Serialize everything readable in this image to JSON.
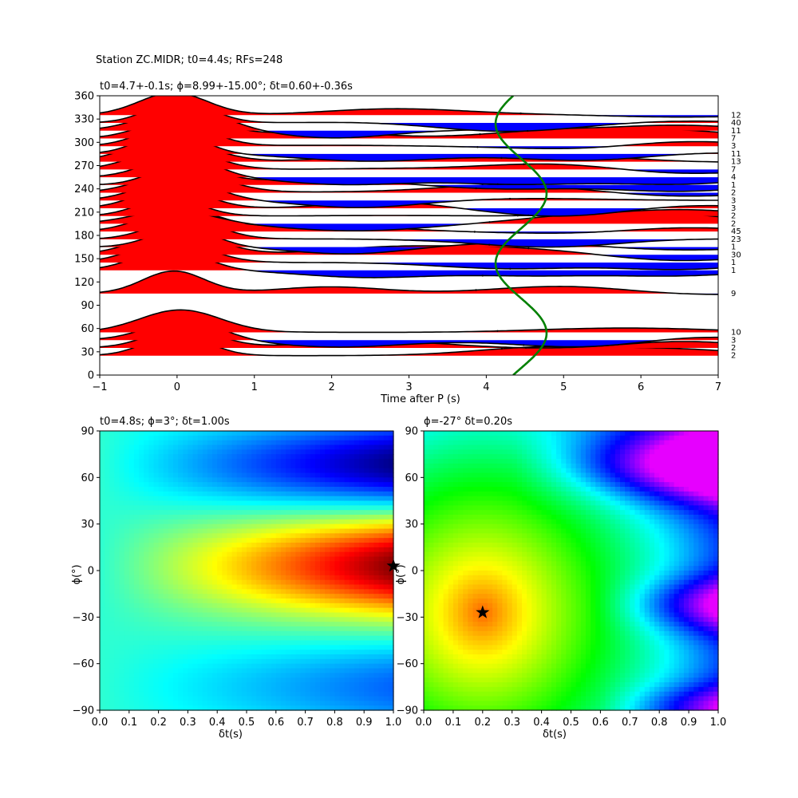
{
  "figure": {
    "suptitle": "Station ZC.MIDR; t0=4.4s; RFs=248"
  },
  "chart_data": [
    {
      "type": "line",
      "subtitle": "t0=4.7+-0.1s; ϕ=8.99+-15.00°; δt=0.60+-0.36s",
      "xlabel": "Time after P (s)",
      "ylabel": "",
      "xlim": [
        -1,
        7
      ],
      "ylim": [
        0,
        360
      ],
      "xticks": [
        "−1",
        "0",
        "1",
        "2",
        "3",
        "4",
        "5",
        "6",
        "7"
      ],
      "yticks": [
        "0",
        "30",
        "60",
        "90",
        "120",
        "150",
        "180",
        "210",
        "240",
        "270",
        "300",
        "330",
        "360"
      ],
      "fill_colors": {
        "positive": "#ff0000",
        "negative": "#0000ff",
        "trace": "#000000"
      },
      "model_curve": {
        "color": "#008000",
        "center_time": 4.45,
        "amplitude": 0.33,
        "period_deg": 180,
        "phase_deg": 9
      },
      "traces": [
        {
          "baz": 25,
          "count": "2",
          "peak": 0.95
        },
        {
          "baz": 35,
          "count": "2",
          "peak": 0.9
        },
        {
          "baz": 45,
          "count": "3",
          "peak": 0.9
        },
        {
          "baz": 55,
          "count": "10",
          "peak": 1.0
        },
        {
          "baz": 105,
          "count": "9",
          "peak": 1.0
        },
        {
          "baz": 135,
          "count": "1",
          "peak": 0.95
        },
        {
          "baz": 145,
          "count": "1",
          "peak": 0.95
        },
        {
          "baz": 155,
          "count": "30",
          "peak": 1.0
        },
        {
          "baz": 165,
          "count": "1",
          "peak": 0.85
        },
        {
          "baz": 175,
          "count": "23",
          "peak": 0.9
        },
        {
          "baz": 185,
          "count": "45",
          "peak": 1.0
        },
        {
          "baz": 195,
          "count": "2",
          "peak": 0.6
        },
        {
          "baz": 205,
          "count": "2",
          "peak": 0.8
        },
        {
          "baz": 215,
          "count": "3",
          "peak": 0.95
        },
        {
          "baz": 225,
          "count": "3",
          "peak": 0.95
        },
        {
          "baz": 235,
          "count": "2",
          "peak": 0.95
        },
        {
          "baz": 245,
          "count": "1",
          "peak": 0.95
        },
        {
          "baz": 255,
          "count": "4",
          "peak": 0.95
        },
        {
          "baz": 265,
          "count": "7",
          "peak": 1.0
        },
        {
          "baz": 275,
          "count": "13",
          "peak": 1.0
        },
        {
          "baz": 285,
          "count": "11",
          "peak": 1.0
        },
        {
          "baz": 295,
          "count": "3",
          "peak": 1.0
        },
        {
          "baz": 305,
          "count": "7",
          "peak": 1.0
        },
        {
          "baz": 315,
          "count": "11",
          "peak": 1.0
        },
        {
          "baz": 325,
          "count": "40",
          "peak": 1.0
        },
        {
          "baz": 335,
          "count": "12",
          "peak": 1.0
        }
      ]
    },
    {
      "type": "heatmap",
      "subtitle": "t0=4.8s; ϕ=3°; δt=1.00s",
      "xlabel": "δt(s)",
      "ylabel": "ϕ(°)",
      "xlim": [
        0,
        1
      ],
      "ylim": [
        -90,
        90
      ],
      "xticks": [
        "0.0",
        "0.1",
        "0.2",
        "0.3",
        "0.4",
        "0.5",
        "0.6",
        "0.7",
        "0.8",
        "0.9",
        "1.0"
      ],
      "yticks": [
        "−90",
        "−60",
        "−30",
        "0",
        "30",
        "60",
        "90"
      ],
      "colormap": "jet",
      "best": {
        "dt": 1.0,
        "phi": 3
      }
    },
    {
      "type": "heatmap",
      "subtitle": "ϕ=-27° δt=0.20s",
      "xlabel": "δt(s)",
      "ylabel": "ϕ(°)",
      "xlim": [
        0,
        1
      ],
      "ylim": [
        -90,
        90
      ],
      "xticks": [
        "0.0",
        "0.1",
        "0.2",
        "0.3",
        "0.4",
        "0.5",
        "0.6",
        "0.7",
        "0.8",
        "0.9",
        "1.0"
      ],
      "yticks": [
        "−90",
        "−60",
        "−30",
        "0",
        "30",
        "60",
        "90"
      ],
      "colormap": "hsv",
      "best": {
        "dt": 0.2,
        "phi": -27
      }
    }
  ]
}
